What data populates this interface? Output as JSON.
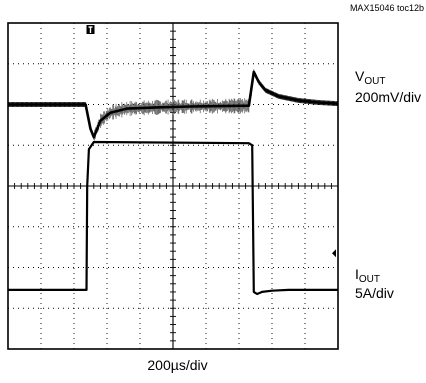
{
  "figure_id": "MAX15046 toc12b",
  "channels": [
    {
      "name": "V",
      "subscript": "OUT",
      "scale": "200mV/div"
    },
    {
      "name": "I",
      "subscript": "OUT",
      "scale": "5A/div"
    }
  ],
  "timebase": "200µs/div",
  "colors": {
    "background": "#ffffff",
    "trace": "#000000",
    "grid": "#000000"
  },
  "chart_data": {
    "type": "line",
    "title": "",
    "xlabel": "200µs/div",
    "ylabel": "",
    "grid": true,
    "x_divisions": 10,
    "y_divisions": 8,
    "xlim": [
      0,
      10
    ],
    "ylim": [
      0,
      8
    ],
    "series": [
      {
        "name": "VOUT 200mV/div",
        "x": [
          0,
          2.35,
          2.5,
          2.6,
          2.8,
          3.1,
          3.6,
          4.5,
          5.5,
          6.5,
          7.3,
          7.45,
          7.6,
          7.8,
          8.2,
          8.8,
          9.4,
          10
        ],
        "y": [
          6.0,
          6.0,
          5.4,
          5.2,
          5.6,
          5.8,
          5.9,
          5.93,
          5.95,
          5.96,
          5.97,
          6.8,
          6.55,
          6.35,
          6.2,
          6.1,
          6.05,
          6.02
        ]
      },
      {
        "name": "IOUT 5A/div",
        "x": [
          0,
          2.38,
          2.4,
          2.45,
          2.6,
          7.3,
          7.4,
          7.45,
          7.55,
          7.7,
          8.0,
          8.5,
          9.0,
          10
        ],
        "y": [
          1.45,
          1.45,
          4.0,
          4.9,
          5.08,
          5.05,
          5.0,
          1.4,
          1.35,
          1.4,
          1.43,
          1.45,
          1.45,
          1.45
        ]
      }
    ],
    "markers": [
      "trigger",
      "channel-2-ground"
    ]
  }
}
